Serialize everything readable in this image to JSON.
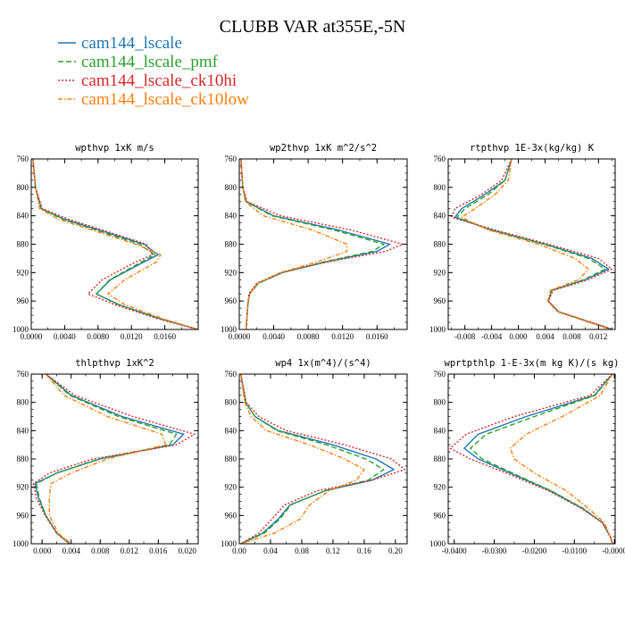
{
  "title": "CLUBB VAR at355E,-5N",
  "legend": [
    {
      "label": "cam144_lscale",
      "color": "#1f77b4",
      "dash": ""
    },
    {
      "label": "cam144_lscale_pmf",
      "color": "#2ca02c",
      "dash": "6,3"
    },
    {
      "label": "cam144_lscale_ck10hi",
      "color": "#d62728",
      "dash": "2,2"
    },
    {
      "label": "cam144_lscale_ck10low",
      "color": "#ff7f0e",
      "dash": "5,2,1.5,2"
    }
  ],
  "chart_data": [
    {
      "type": "line",
      "title": "wpthvp  1xK m/s",
      "xlim": [
        0,
        0.02
      ],
      "ylim": [
        760,
        1000
      ],
      "y_reversed": true,
      "xticks": [
        "0.0000",
        "0.0040",
        "0.0080",
        "0.0120",
        "0.0160"
      ],
      "xtick_values": [
        0,
        0.004,
        0.008,
        0.012,
        0.016
      ],
      "yticks": [
        "760",
        "800",
        "840",
        "880",
        "920",
        "960",
        "1000"
      ],
      "y": [
        760,
        800,
        830,
        845,
        880,
        895,
        905,
        930,
        950,
        965,
        985,
        1000
      ],
      "series": [
        {
          "name": "cam144_lscale",
          "values": [
            0.0002,
            0.0005,
            0.0012,
            0.004,
            0.0135,
            0.0152,
            0.0135,
            0.0095,
            0.0078,
            0.0105,
            0.0155,
            0.02
          ]
        },
        {
          "name": "cam144_lscale_pmf",
          "values": [
            0.0002,
            0.0005,
            0.0012,
            0.0038,
            0.013,
            0.0148,
            0.0132,
            0.0094,
            0.0078,
            0.0104,
            0.0154,
            0.02
          ]
        },
        {
          "name": "cam144_lscale_ck10hi",
          "values": [
            0.0002,
            0.0005,
            0.0013,
            0.0045,
            0.0138,
            0.0145,
            0.0125,
            0.0085,
            0.0068,
            0.01,
            0.0152,
            0.02
          ]
        },
        {
          "name": "cam144_lscale_ck10low",
          "values": [
            0.0002,
            0.0005,
            0.001,
            0.0033,
            0.0125,
            0.0155,
            0.015,
            0.0112,
            0.0092,
            0.0112,
            0.0158,
            0.02
          ]
        }
      ]
    },
    {
      "type": "line",
      "title": "wp2thvp  1xK m^2/s^2",
      "xlim": [
        0,
        0.0195
      ],
      "ylim": [
        760,
        1000
      ],
      "y_reversed": true,
      "xticks": [
        "0.0000",
        "0.0040",
        "0.0080",
        "0.0120",
        "0.0160"
      ],
      "xtick_values": [
        0,
        0.004,
        0.008,
        0.012,
        0.016
      ],
      "yticks": [
        "760",
        "800",
        "840",
        "880",
        "920",
        "960",
        "1000"
      ],
      "y": [
        760,
        800,
        820,
        840,
        860,
        880,
        890,
        905,
        920,
        935,
        950,
        965,
        1000
      ],
      "series": [
        {
          "name": "cam144_lscale",
          "values": [
            0.0002,
            0.0004,
            0.0008,
            0.004,
            0.0115,
            0.0175,
            0.016,
            0.01,
            0.005,
            0.0022,
            0.0012,
            0.001,
            0.0008
          ]
        },
        {
          "name": "cam144_lscale_pmf",
          "values": [
            0.0002,
            0.0004,
            0.0008,
            0.0038,
            0.011,
            0.0168,
            0.0155,
            0.0098,
            0.005,
            0.0022,
            0.0012,
            0.001,
            0.0008
          ]
        },
        {
          "name": "cam144_lscale_ck10hi",
          "values": [
            0.0002,
            0.0004,
            0.0009,
            0.0048,
            0.013,
            0.019,
            0.017,
            0.0102,
            0.0048,
            0.002,
            0.0011,
            0.001,
            0.0008
          ]
        },
        {
          "name": "cam144_lscale_ck10low",
          "values": [
            0.0002,
            0.0004,
            0.0007,
            0.0028,
            0.0085,
            0.0125,
            0.0125,
            0.009,
            0.0048,
            0.0022,
            0.0012,
            0.001,
            0.0008
          ]
        }
      ]
    },
    {
      "type": "line",
      "title": "rtpthvp  1E-3x(kg/kg) K",
      "xlim": [
        -0.0105,
        0.0145
      ],
      "ylim": [
        760,
        1000
      ],
      "y_reversed": true,
      "xticks": [
        "-0.008",
        "-0.004",
        "0.000",
        "0.004",
        "0.008",
        "0.012"
      ],
      "xtick_values": [
        -0.008,
        -0.004,
        0,
        0.004,
        0.008,
        0.012
      ],
      "yticks": [
        "760",
        "800",
        "840",
        "880",
        "920",
        "960",
        "1000"
      ],
      "y": [
        760,
        790,
        810,
        830,
        842,
        860,
        880,
        900,
        915,
        930,
        945,
        960,
        975,
        1000
      ],
      "series": [
        {
          "name": "cam144_lscale",
          "values": [
            -0.001,
            -0.002,
            -0.005,
            -0.0085,
            -0.0095,
            -0.004,
            0.004,
            0.011,
            0.0135,
            0.01,
            0.005,
            0.0045,
            0.006,
            0.014
          ]
        },
        {
          "name": "cam144_lscale_pmf",
          "values": [
            -0.001,
            -0.002,
            -0.0045,
            -0.008,
            -0.0092,
            -0.0042,
            0.0038,
            0.0105,
            0.013,
            0.0098,
            0.005,
            0.0045,
            0.006,
            0.014
          ]
        },
        {
          "name": "cam144_lscale_ck10hi",
          "values": [
            -0.001,
            -0.0025,
            -0.0055,
            -0.0095,
            -0.01,
            -0.0035,
            0.0045,
            0.012,
            0.014,
            0.0105,
            0.0052,
            0.0045,
            0.006,
            0.0142
          ]
        },
        {
          "name": "cam144_lscale_ck10low",
          "values": [
            -0.001,
            -0.0015,
            -0.0035,
            -0.0065,
            -0.0085,
            -0.0045,
            0.003,
            0.0085,
            0.0105,
            0.009,
            0.0048,
            0.0044,
            0.0058,
            0.0138
          ]
        }
      ]
    },
    {
      "type": "line",
      "title": "thlpthvp  1xK^2",
      "xlim": [
        -0.0015,
        0.0215
      ],
      "ylim": [
        760,
        1000
      ],
      "y_reversed": true,
      "xticks": [
        "0.000",
        "0.004",
        "0.008",
        "0.012",
        "0.016",
        "0.020"
      ],
      "xtick_values": [
        0,
        0.004,
        0.008,
        0.012,
        0.016,
        0.02
      ],
      "yticks": [
        "760",
        "800",
        "840",
        "880",
        "920",
        "960",
        "1000"
      ],
      "y": [
        760,
        790,
        820,
        845,
        860,
        880,
        900,
        915,
        935,
        960,
        985,
        1000
      ],
      "series": [
        {
          "name": "cam144_lscale",
          "values": [
            0.0005,
            0.004,
            0.011,
            0.0195,
            0.018,
            0.008,
            0.002,
            -0.001,
            -0.0005,
            0.0005,
            0.002,
            0.0038
          ]
        },
        {
          "name": "cam144_lscale_pmf",
          "values": [
            0.0005,
            0.0038,
            0.0105,
            0.0185,
            0.0175,
            0.0078,
            0.002,
            -0.0008,
            -0.0004,
            0.0005,
            0.002,
            0.0038
          ]
        },
        {
          "name": "cam144_lscale_ck10hi",
          "values": [
            0.0005,
            0.0045,
            0.0125,
            0.021,
            0.0185,
            0.007,
            0.001,
            -0.0012,
            -0.0008,
            0.0004,
            0.002,
            0.0038
          ]
        },
        {
          "name": "cam144_lscale_ck10low",
          "values": [
            0.0005,
            0.003,
            0.009,
            0.0165,
            0.017,
            0.009,
            0.004,
            0.0012,
            0.001,
            0.001,
            0.0022,
            0.004
          ]
        }
      ]
    },
    {
      "type": "line",
      "title": "wp4  1x(m^4)/(s^4)",
      "xlim": [
        0,
        0.215
      ],
      "ylim": [
        760,
        1000
      ],
      "y_reversed": true,
      "xticks": [
        "0.00",
        "0.04",
        "0.08",
        "0.12",
        "0.16",
        "0.20"
      ],
      "xtick_values": [
        0,
        0.04,
        0.08,
        0.12,
        0.16,
        0.2
      ],
      "yticks": [
        "760",
        "800",
        "840",
        "880",
        "920",
        "960",
        "1000"
      ],
      "y": [
        760,
        800,
        820,
        840,
        860,
        880,
        895,
        910,
        925,
        945,
        965,
        985,
        1000
      ],
      "series": [
        {
          "name": "cam144_lscale",
          "values": [
            0.002,
            0.008,
            0.02,
            0.05,
            0.12,
            0.175,
            0.198,
            0.17,
            0.11,
            0.065,
            0.05,
            0.03,
            0.002
          ]
        },
        {
          "name": "cam144_lscale_pmf",
          "values": [
            0.002,
            0.008,
            0.02,
            0.048,
            0.112,
            0.162,
            0.185,
            0.165,
            0.11,
            0.066,
            0.052,
            0.032,
            0.002
          ]
        },
        {
          "name": "cam144_lscale_ck10hi",
          "values": [
            0.002,
            0.009,
            0.025,
            0.06,
            0.135,
            0.195,
            0.212,
            0.17,
            0.1,
            0.058,
            0.042,
            0.025,
            0.002
          ]
        },
        {
          "name": "cam144_lscale_ck10low",
          "values": [
            0.002,
            0.007,
            0.015,
            0.035,
            0.09,
            0.135,
            0.16,
            0.15,
            0.115,
            0.09,
            0.078,
            0.045,
            0.002
          ]
        }
      ]
    },
    {
      "type": "line",
      "title": "wprtpthlp  1-E-3x(m kg K)/(s kg)",
      "xlim": [
        -0.0415,
        0.0002
      ],
      "ylim": [
        760,
        1000
      ],
      "y_reversed": true,
      "xticks": [
        "-0.0400",
        "-0.0300",
        "-0.0200",
        "-0.0100",
        "-0.0000"
      ],
      "xtick_values": [
        -0.04,
        -0.03,
        -0.02,
        -0.01,
        0
      ],
      "yticks": [
        "760",
        "800",
        "840",
        "880",
        "920",
        "960",
        "1000"
      ],
      "y": [
        760,
        790,
        820,
        845,
        865,
        880,
        900,
        925,
        950,
        970,
        990,
        1000
      ],
      "series": [
        {
          "name": "cam144_lscale",
          "values": [
            -0.0005,
            -0.005,
            -0.022,
            -0.034,
            -0.0375,
            -0.034,
            -0.026,
            -0.016,
            -0.008,
            -0.003,
            -0.001,
            -0.0005
          ]
        },
        {
          "name": "cam144_lscale_pmf",
          "values": [
            -0.0005,
            -0.0048,
            -0.02,
            -0.032,
            -0.036,
            -0.033,
            -0.0255,
            -0.0158,
            -0.0078,
            -0.003,
            -0.001,
            -0.0005
          ]
        },
        {
          "name": "cam144_lscale_ck10hi",
          "values": [
            -0.0005,
            -0.006,
            -0.025,
            -0.037,
            -0.041,
            -0.036,
            -0.027,
            -0.0165,
            -0.0082,
            -0.003,
            -0.001,
            -0.0005
          ]
        },
        {
          "name": "cam144_lscale_ck10low",
          "values": [
            -0.0005,
            -0.0035,
            -0.013,
            -0.022,
            -0.026,
            -0.025,
            -0.02,
            -0.012,
            -0.0065,
            -0.0025,
            -0.001,
            -0.0005
          ]
        }
      ]
    }
  ]
}
